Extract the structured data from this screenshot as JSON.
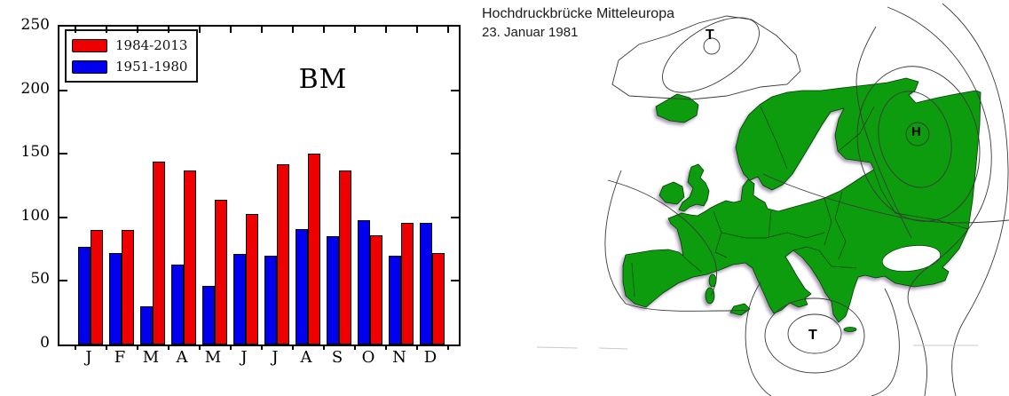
{
  "chart_data": {
    "type": "bar",
    "title": "BM",
    "categories": [
      "J",
      "F",
      "M",
      "A",
      "M",
      "J",
      "J",
      "A",
      "S",
      "O",
      "N",
      "D"
    ],
    "series": [
      {
        "name": "1984-2013",
        "color": "#ee0000",
        "values": [
          90,
          90,
          144,
          137,
          114,
          103,
          142,
          150,
          137,
          86,
          96,
          72
        ]
      },
      {
        "name": "1951-1980",
        "color": "#0000ee",
        "values": [
          77,
          72,
          30,
          63,
          46,
          71,
          70,
          91,
          85,
          98,
          70,
          96
        ]
      }
    ],
    "bar_order_in_group": [
      "1951-1980",
      "1984-2013"
    ],
    "xlabel": "",
    "ylabel": "",
    "ylim": [
      0,
      250
    ],
    "yticks": [
      0,
      50,
      100,
      150,
      200,
      250
    ],
    "grid": false,
    "legend_position": "upper left"
  },
  "map": {
    "title_line1": "Hochdruckbrücke Mitteleuropa",
    "title_line2": "23. Januar 1981",
    "labels": [
      {
        "id": "north-low",
        "text": "T"
      },
      {
        "id": "east-high",
        "text": "H"
      },
      {
        "id": "south-low",
        "text": "T"
      }
    ],
    "colors": {
      "land": "#0e9c0e",
      "land_border": "#033b03",
      "contour": "#3a3a3a"
    }
  }
}
